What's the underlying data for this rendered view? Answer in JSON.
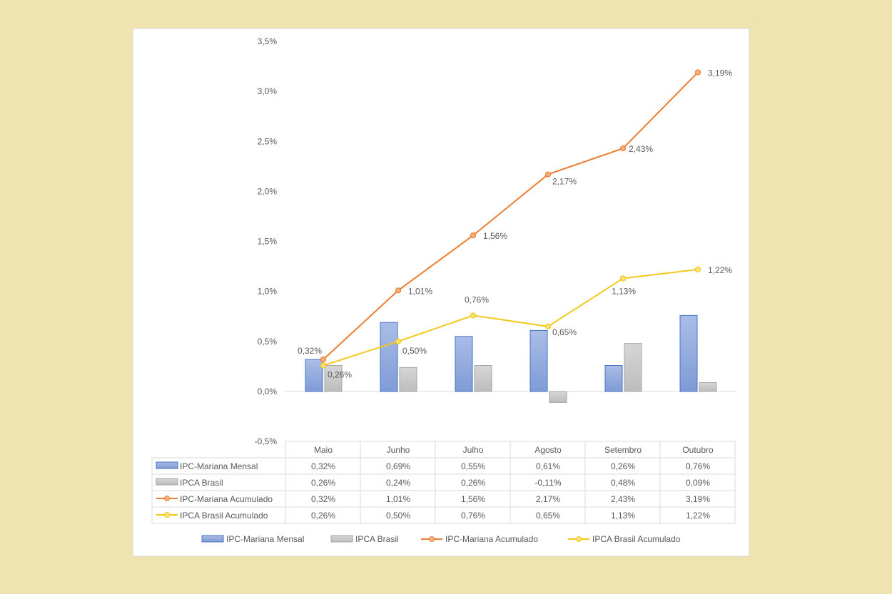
{
  "chart_data": {
    "type": "bar+line",
    "categories": [
      "Maio",
      "Junho",
      "Julho",
      "Agosto",
      "Setembro",
      "Outubro"
    ],
    "ylim": [
      -0.5,
      3.5
    ],
    "yticks": [
      "-0,5%",
      "0,0%",
      "0,5%",
      "1,0%",
      "1,5%",
      "2,0%",
      "2,5%",
      "3,0%",
      "3,5%"
    ],
    "ytick_values": [
      -0.5,
      0,
      0.5,
      1,
      1.5,
      2,
      2.5,
      3,
      3.5
    ],
    "grid": false,
    "legend_position": "bottom",
    "series": [
      {
        "name": "IPC-Mariana Mensal",
        "kind": "bar",
        "color": "#8ea9db",
        "values": [
          0.32,
          0.69,
          0.55,
          0.61,
          0.26,
          0.76
        ],
        "labels": [
          "0,32%",
          "0,69%",
          "0,55%",
          "0,61%",
          "0,26%",
          "0,76%"
        ]
      },
      {
        "name": "IPCA Brasil",
        "kind": "bar",
        "color": "#c9c9c9",
        "values": [
          0.26,
          0.24,
          0.26,
          -0.11,
          0.48,
          0.09
        ],
        "labels": [
          "0,26%",
          "0,24%",
          "0,26%",
          "-0,11%",
          "0,48%",
          "0,09%"
        ]
      },
      {
        "name": "IPC-Mariana Acumulado",
        "kind": "line",
        "color": "#ed7d31",
        "values": [
          0.32,
          1.01,
          1.56,
          2.17,
          2.43,
          3.19
        ],
        "labels": [
          "0,32%",
          "1,01%",
          "1,56%",
          "2,17%",
          "2,43%",
          "3,19%"
        ]
      },
      {
        "name": "IPCA Brasil Acumulado",
        "kind": "line",
        "color": "#f2c81a",
        "values": [
          0.26,
          0.5,
          0.76,
          0.65,
          1.13,
          1.22
        ],
        "labels": [
          "0,26%",
          "0,50%",
          "0,76%",
          "0,65%",
          "1,13%",
          "1,22%"
        ]
      }
    ]
  }
}
